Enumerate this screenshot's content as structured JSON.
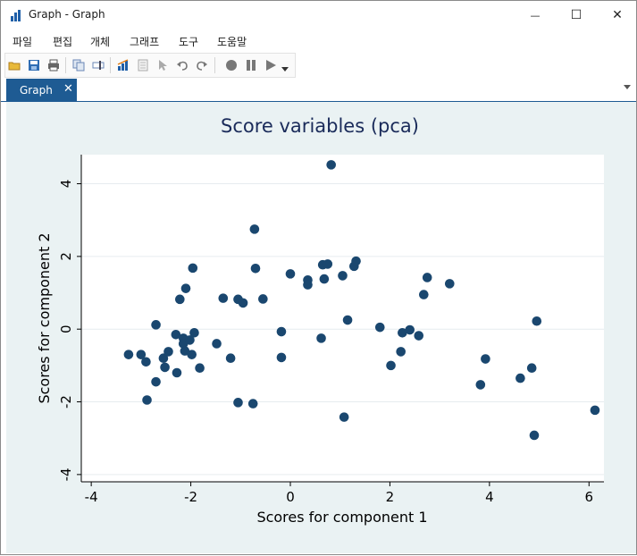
{
  "window": {
    "title": "Graph - Graph",
    "controls": {
      "minimize": "—",
      "maximize": "☐",
      "close": "✕"
    }
  },
  "menu": {
    "items": [
      "파일",
      "편집",
      "개체",
      "그래프",
      "도구",
      "도움말"
    ]
  },
  "toolbar": {
    "icons": [
      "open-icon",
      "save-icon",
      "print-icon",
      "copy-icon",
      "rename-icon",
      "graph-editor-icon",
      "data-editor-icon",
      "pointer-icon",
      "undo-icon",
      "redo-icon",
      "record-icon",
      "pause-icon",
      "play-icon",
      "dropdown-icon"
    ]
  },
  "tabs": [
    {
      "label": "Graph",
      "close": "✕"
    }
  ],
  "colors": {
    "accent": "#1e5b93",
    "marker": "#1a476f",
    "plot_bg": "#ffffff",
    "graph_bg": "#eaf2f3",
    "title": "#1a2b5a"
  },
  "chart_data": {
    "type": "scatter",
    "title": "Score variables (pca)",
    "xlabel": "Scores for component 1",
    "ylabel": "Scores for component 2",
    "xlim": [
      -4.2,
      6.3
    ],
    "ylim": [
      -4.2,
      4.8
    ],
    "xticks": [
      -4,
      -2,
      0,
      2,
      4,
      6
    ],
    "yticks": [
      -4,
      -2,
      0,
      2,
      4
    ],
    "grid": true,
    "points": [
      [
        -3.25,
        -0.7
      ],
      [
        -3.0,
        -0.7
      ],
      [
        -2.9,
        -0.9
      ],
      [
        -2.88,
        -1.95
      ],
      [
        -2.7,
        0.12
      ],
      [
        -2.7,
        -1.45
      ],
      [
        -2.55,
        -0.8
      ],
      [
        -2.52,
        -1.05
      ],
      [
        -2.45,
        -0.62
      ],
      [
        -2.3,
        -0.15
      ],
      [
        -2.28,
        -1.2
      ],
      [
        -2.22,
        0.82
      ],
      [
        -2.15,
        -0.25
      ],
      [
        -2.15,
        -0.4
      ],
      [
        -2.12,
        -0.6
      ],
      [
        -2.1,
        1.12
      ],
      [
        -2.02,
        -0.3
      ],
      [
        -1.98,
        -0.7
      ],
      [
        -1.96,
        1.68
      ],
      [
        -1.93,
        -0.1
      ],
      [
        -1.82,
        -1.07
      ],
      [
        -1.48,
        -0.4
      ],
      [
        -1.35,
        0.85
      ],
      [
        -1.2,
        -0.8
      ],
      [
        -1.05,
        -2.02
      ],
      [
        -1.05,
        0.82
      ],
      [
        -0.95,
        0.72
      ],
      [
        -0.75,
        -2.05
      ],
      [
        -0.72,
        2.75
      ],
      [
        -0.7,
        1.67
      ],
      [
        -0.55,
        0.83
      ],
      [
        -0.18,
        -0.07
      ],
      [
        -0.18,
        -0.78
      ],
      [
        0.0,
        1.52
      ],
      [
        0.35,
        1.35
      ],
      [
        0.35,
        1.22
      ],
      [
        0.62,
        -0.25
      ],
      [
        0.65,
        1.77
      ],
      [
        0.68,
        1.38
      ],
      [
        0.75,
        1.79
      ],
      [
        0.82,
        4.52
      ],
      [
        1.05,
        1.47
      ],
      [
        1.08,
        -2.42
      ],
      [
        1.15,
        0.25
      ],
      [
        1.28,
        1.73
      ],
      [
        1.32,
        1.87
      ],
      [
        1.8,
        0.05
      ],
      [
        2.02,
        -1.0
      ],
      [
        2.22,
        -0.62
      ],
      [
        2.25,
        -0.1
      ],
      [
        2.4,
        -0.02
      ],
      [
        2.58,
        -0.18
      ],
      [
        2.68,
        0.95
      ],
      [
        2.75,
        1.42
      ],
      [
        3.2,
        1.25
      ],
      [
        3.82,
        -1.53
      ],
      [
        3.92,
        -0.82
      ],
      [
        4.62,
        -1.35
      ],
      [
        4.85,
        -1.07
      ],
      [
        4.9,
        -2.92
      ],
      [
        4.95,
        0.22
      ],
      [
        6.12,
        -2.23
      ]
    ]
  }
}
